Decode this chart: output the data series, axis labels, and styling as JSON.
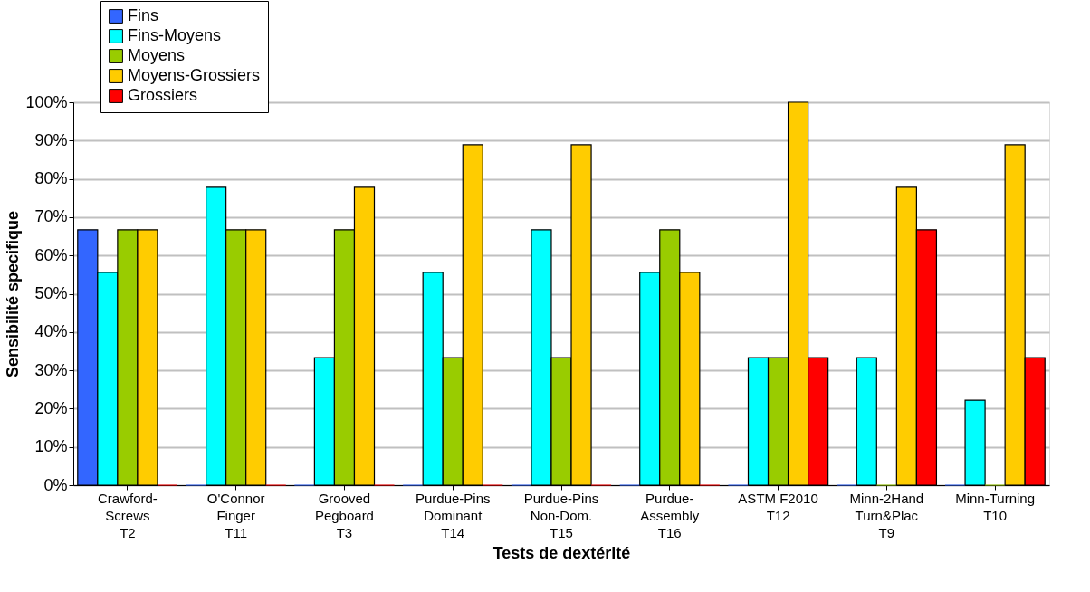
{
  "chart_data": {
    "type": "bar",
    "xlabel": "Tests de dextérité",
    "ylabel": "Sensibilité specifique",
    "categories": [
      "Crawford-\nScrews\nT2",
      "O'Connor\nFinger\nT11",
      "Grooved\nPegboard\nT3",
      "Purdue-Pins\nDominant\nT14",
      "Purdue-Pins\nNon-Dom.\nT15",
      "Purdue-\nAssembly\nT16",
      "ASTM F2010\n\nT12",
      "Minn-2Hand\nTurn&Plac\nT9",
      "Minn-Turning\n\nT10"
    ],
    "series": [
      {
        "name": "Fins",
        "color": "#3366ff",
        "values": [
          66.7,
          0,
          0,
          0,
          0,
          0,
          0,
          0,
          0
        ]
      },
      {
        "name": "Fins-Moyens",
        "color": "#00ffff",
        "values": [
          55.6,
          77.8,
          33.3,
          55.6,
          66.7,
          55.6,
          33.3,
          33.3,
          22.2
        ]
      },
      {
        "name": "Moyens",
        "color": "#99cc00",
        "values": [
          66.7,
          66.7,
          66.7,
          33.3,
          33.3,
          66.7,
          33.3,
          0,
          0
        ]
      },
      {
        "name": "Moyens-Grossiers",
        "color": "#ffcc00",
        "values": [
          66.7,
          66.7,
          77.8,
          88.9,
          88.9,
          55.6,
          100,
          77.8,
          88.9
        ]
      },
      {
        "name": "Grossiers",
        "color": "#ff0000",
        "values": [
          0,
          0,
          0,
          0,
          0,
          0,
          33.3,
          66.7,
          33.3
        ]
      }
    ],
    "ylim": [
      0,
      100
    ],
    "yticks": [
      {
        "value": 0,
        "label": "0%"
      },
      {
        "value": 10,
        "label": "10%"
      },
      {
        "value": 20,
        "label": "20%"
      },
      {
        "value": 30,
        "label": "30%"
      },
      {
        "value": 40,
        "label": "40%"
      },
      {
        "value": 50,
        "label": "50%"
      },
      {
        "value": 60,
        "label": "60%"
      },
      {
        "value": 70,
        "label": "70%"
      },
      {
        "value": 80,
        "label": "80%"
      },
      {
        "value": 90,
        "label": "90%"
      },
      {
        "value": 100,
        "label": "100%"
      }
    ],
    "grid": "y",
    "legend": "top left"
  }
}
